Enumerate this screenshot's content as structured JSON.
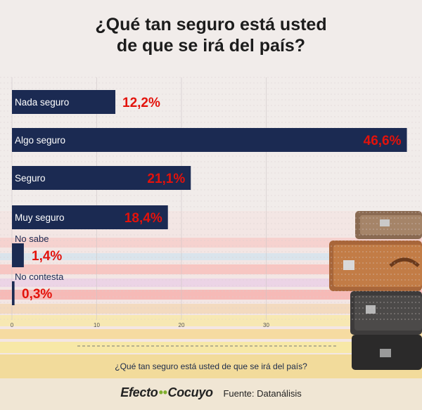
{
  "title_line1": "¿Qué tan seguro está usted",
  "title_line2": "de que se irá del país?",
  "bottom_title": "¿Qué tan seguro está usted de que se irá del país?",
  "footer": {
    "logo_part1": "Efecto",
    "logo_dots": "••",
    "logo_part2": "Cocuyo",
    "source": "Fuente: Datanálisis"
  },
  "colors": {
    "bar": "#1b2a52",
    "value_text": "#e3120b",
    "label_text": "#ffffff"
  },
  "chart_data": {
    "type": "bar",
    "orientation": "horizontal",
    "categories": [
      "Nada seguro",
      "Algo seguro",
      "Seguro",
      "Muy seguro",
      "No sabe",
      "No contesta"
    ],
    "values": [
      12.2,
      46.6,
      21.1,
      18.4,
      1.4,
      0.3
    ],
    "value_labels": [
      "12,2%",
      "46,6%",
      "21,1%",
      "18,4%",
      "1,4%",
      "0,3%"
    ],
    "xticks": [
      0,
      10,
      20,
      30
    ],
    "xlim": [
      0,
      48
    ],
    "xlabel": "¿Qué tan seguro está usted de que se irá del país?",
    "grid": true
  }
}
